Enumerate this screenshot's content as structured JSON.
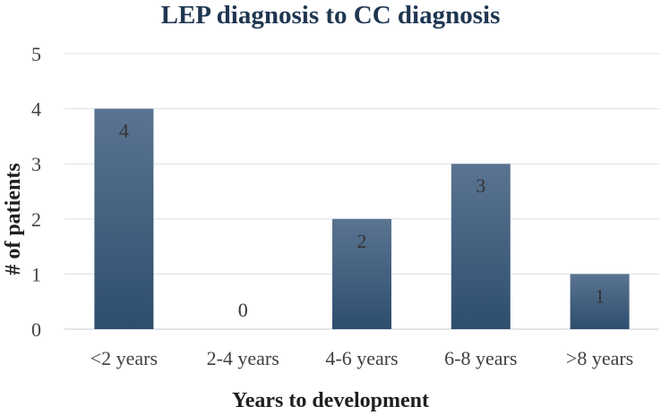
{
  "chart_data": {
    "type": "bar",
    "title": "LEP diagnosis to CC diagnosis",
    "xlabel": "Years to development",
    "ylabel": "# of patients",
    "categories": [
      "<2 years",
      "2-4 years",
      "4-6 years",
      "6-8 years",
      ">8 years"
    ],
    "values": [
      4,
      0,
      2,
      3,
      1
    ],
    "data_labels": [
      "4",
      "0",
      "2",
      "3",
      "1"
    ],
    "ylim": [
      0,
      5
    ],
    "yticks": [
      0,
      1,
      2,
      3,
      4,
      5
    ],
    "ytick_labels": [
      "0",
      "1",
      "2",
      "3",
      "4",
      "5"
    ],
    "grid": true,
    "legend": "none",
    "colors": {
      "bar_top": "#5a7491",
      "bar_bottom": "#2e4e6e",
      "title": "#1f3651"
    }
  }
}
